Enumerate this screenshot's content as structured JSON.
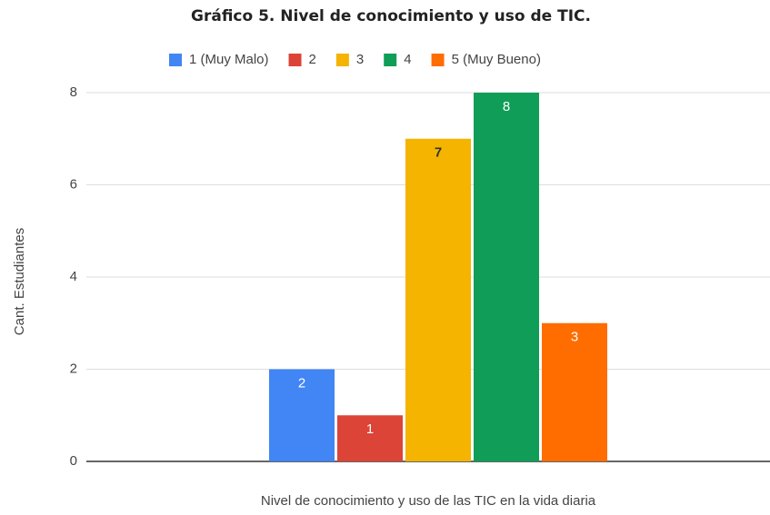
{
  "chart_data": {
    "type": "bar",
    "title": "Gráfico 5. Nivel de conocimiento y uso de TIC.",
    "x_label": "Nivel de conocimiento y uso de las TIC en la vida diaria",
    "y_label": "Cant. Estudiantes",
    "categories": [
      null
    ],
    "series": [
      {
        "name": "1 (Muy Malo)",
        "color": "#4285f4",
        "values": [
          2
        ]
      },
      {
        "name": "2",
        "color": "#db4437",
        "values": [
          1
        ]
      },
      {
        "name": "3",
        "color": "#f4b400",
        "values": [
          7
        ]
      },
      {
        "name": "4",
        "color": "#0f9d58",
        "values": [
          8
        ]
      },
      {
        "name": "5 (Muy Bueno)",
        "color": "#ff6d00",
        "values": [
          3
        ]
      }
    ],
    "ylim": [
      0,
      8
    ],
    "yticks": [
      0,
      2,
      4,
      6,
      8
    ],
    "grid": true,
    "legend": "top"
  }
}
